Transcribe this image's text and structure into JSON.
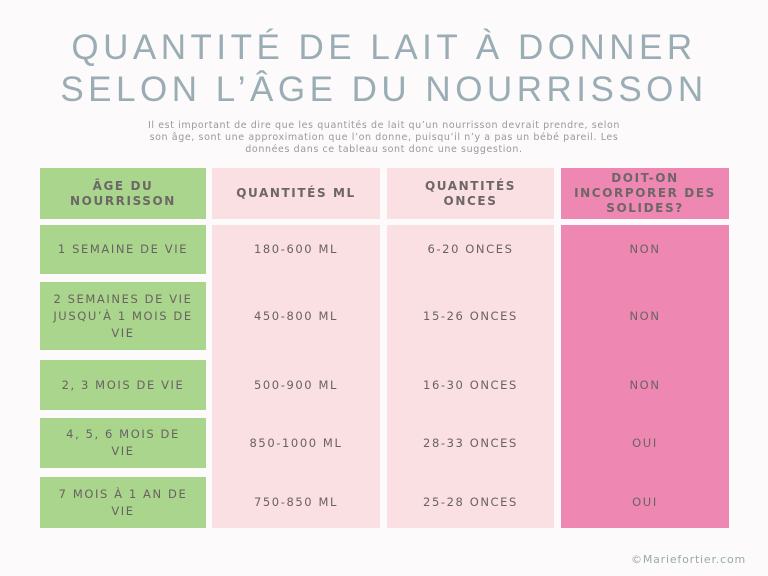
{
  "header": {
    "title": [
      "QUANTITÉ DE LAIT À DONNER",
      "SELON L’ÂGE DU NOURRISSON"
    ],
    "intro": "Il est important de dire que les quantités de lait qu’un nourrisson devrait prendre, selon son âge, sont une approximation que l’on donne, puisqu’il n’y a pas un bébé pareil. Les données dans ce tableau sont donc une suggestion."
  },
  "table": {
    "columns": [
      "ÂGE DU NOURRISSON",
      "QUANTITÉS ML",
      "QUANTITÉS ONCES",
      "DOIT-ON INCORPORER DES SOLIDES?"
    ],
    "rows": [
      [
        "1 SEMAINE DE VIE",
        "180-600 ML",
        "6-20 ONCES",
        "NON"
      ],
      [
        "2 SEMAINES DE VIE JUSQU’À 1 MOIS DE VIE",
        "450-800 ML",
        "15-26 ONCES",
        "NON"
      ],
      [
        "2, 3 MOIS DE VIE",
        "500-900 ML",
        "16-30 ONCES",
        "NON"
      ],
      [
        "4, 5, 6 MOIS DE VIE",
        "850-1000 ML",
        "28-33 ONCES",
        "OUI"
      ],
      [
        "7 MOIS À 1 AN DE VIE",
        "750-850 ML",
        "25-28 ONCES",
        "OUI"
      ]
    ]
  },
  "footer": {
    "credit": "©Mariefortier.com"
  }
}
